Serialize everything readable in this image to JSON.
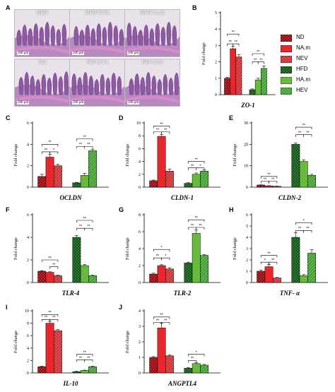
{
  "panels": {
    "A": "A",
    "B": "B",
    "C": "C",
    "D": "D",
    "E": "E",
    "F": "F",
    "G": "G",
    "H": "H",
    "I": "I",
    "J": "J"
  },
  "micrographs": [
    {
      "label": "HFD",
      "scale": "200 μm"
    },
    {
      "label": "HFD+EVs",
      "scale": "200 μm"
    },
    {
      "label": "HFD+A.m",
      "scale": "200 μm"
    },
    {
      "label": "ND",
      "scale": "200 μm"
    },
    {
      "label": "ND+EVs",
      "scale": "200 μm"
    },
    {
      "label": "ND+A.m",
      "scale": "200 μm"
    }
  ],
  "legend": [
    {
      "label": "ND",
      "color": "#c8262b",
      "pattern": "check"
    },
    {
      "label": "NA.m",
      "color": "#e8262b",
      "pattern": "solid"
    },
    {
      "label": "NEV",
      "color": "#d8262b",
      "pattern": "hatch"
    },
    {
      "label": "HFD",
      "color": "#2e7d32",
      "pattern": "check"
    },
    {
      "label": "HA.m",
      "color": "#66bb3a",
      "pattern": "solid"
    },
    {
      "label": "HEV",
      "color": "#43a047",
      "pattern": "hatch"
    }
  ],
  "colors": {
    "nd": "#c8262b",
    "na": "#e8262b",
    "nev": "#d8262b",
    "hfd": "#2e7d32",
    "ha": "#66bb3a",
    "hev": "#43a047"
  },
  "chart_data": [
    {
      "id": "B",
      "type": "bar",
      "title": "ZO-1",
      "ylabel": "Fold change",
      "ylim": [
        0,
        5
      ],
      "yticks": [
        0,
        1,
        2,
        3,
        4,
        5
      ],
      "series": [
        {
          "name": "ND",
          "values": [
            1.0
          ]
        },
        {
          "name": "NA.m",
          "values": [
            2.8
          ]
        },
        {
          "name": "NEV",
          "values": [
            2.3
          ]
        },
        {
          "name": "HFD",
          "values": [
            0.3
          ]
        },
        {
          "name": "HA.m",
          "values": [
            0.9
          ]
        },
        {
          "name": "HEV",
          "values": [
            1.6
          ]
        }
      ],
      "values": [
        1.0,
        2.8,
        2.3,
        0.3,
        0.9,
        1.6
      ],
      "errors": [
        0.05,
        0.15,
        0.15,
        0.05,
        0.1,
        0.15
      ],
      "significance": [
        {
          "from": 0,
          "to": 2,
          "label": "**",
          "level": 3.7
        },
        {
          "from": 0,
          "to": 1,
          "label": "**",
          "level": 3.1
        },
        {
          "from": 1,
          "to": 2,
          "label": "**",
          "level": 3.1
        },
        {
          "from": 3,
          "to": 5,
          "label": "**",
          "level": 2.5
        },
        {
          "from": 3,
          "to": 4,
          "label": "**",
          "level": 2.0
        },
        {
          "from": 4,
          "to": 5,
          "label": "**",
          "level": 2.0
        }
      ]
    },
    {
      "id": "C",
      "type": "bar",
      "title": "OCLDN",
      "ylabel": "Fold change",
      "ylim": [
        0,
        6
      ],
      "yticks": [
        0,
        2,
        4,
        6
      ],
      "values": [
        1.0,
        2.8,
        2.0,
        0.4,
        1.1,
        3.4
      ],
      "errors": [
        0.2,
        0.25,
        0.15,
        0.05,
        0.2,
        0.15
      ],
      "significance": [
        {
          "from": 0,
          "to": 2,
          "label": "**",
          "level": 4.0
        },
        {
          "from": 0,
          "to": 1,
          "label": "**",
          "level": 3.3
        },
        {
          "from": 1,
          "to": 2,
          "label": "*",
          "level": 3.3
        },
        {
          "from": 3,
          "to": 5,
          "label": "**",
          "level": 4.5
        },
        {
          "from": 3,
          "to": 4,
          "label": "**",
          "level": 3.8
        },
        {
          "from": 4,
          "to": 5,
          "label": "**",
          "level": 3.8
        }
      ]
    },
    {
      "id": "D",
      "type": "bar",
      "title": "CLDN-1",
      "ylabel": "Fold change",
      "ylim": [
        0,
        10
      ],
      "yticks": [
        0,
        2,
        4,
        6,
        8,
        10
      ],
      "values": [
        1.0,
        7.9,
        2.5,
        0.6,
        2.0,
        2.5
      ],
      "errors": [
        0.1,
        0.3,
        0.3,
        0.1,
        0.2,
        0.2
      ],
      "significance": [
        {
          "from": 0,
          "to": 2,
          "label": "**",
          "level": 9.5
        },
        {
          "from": 0,
          "to": 1,
          "label": "**",
          "level": 8.6
        },
        {
          "from": 1,
          "to": 2,
          "label": "**",
          "level": 8.6
        },
        {
          "from": 3,
          "to": 5,
          "label": "**",
          "level": 4.0
        },
        {
          "from": 3,
          "to": 4,
          "label": "**",
          "level": 3.0
        },
        {
          "from": 4,
          "to": 5,
          "label": "*",
          "level": 3.0
        }
      ]
    },
    {
      "id": "E",
      "type": "bar",
      "title": "CLDN-2",
      "ylabel": "Fold change",
      "ylim": [
        0,
        30
      ],
      "yticks": [
        0,
        10,
        20,
        30
      ],
      "values": [
        1.0,
        0.6,
        0.4,
        20.0,
        12.0,
        5.5
      ],
      "errors": [
        0.1,
        0.1,
        0.1,
        0.6,
        0.8,
        0.5
      ],
      "significance": [
        {
          "from": 0,
          "to": 2,
          "label": "**",
          "level": 5.0
        },
        {
          "from": 0,
          "to": 1,
          "label": "**",
          "level": 2.8
        },
        {
          "from": 1,
          "to": 2,
          "label": "**",
          "level": 2.8
        },
        {
          "from": 3,
          "to": 5,
          "label": "**",
          "level": 28.0
        },
        {
          "from": 3,
          "to": 4,
          "label": "**",
          "level": 24.5
        },
        {
          "from": 4,
          "to": 5,
          "label": "**",
          "level": 24.5
        }
      ]
    },
    {
      "id": "F",
      "type": "bar",
      "title": "TLR-4",
      "ylabel": "Fold change",
      "ylim": [
        0,
        6
      ],
      "yticks": [
        0,
        2,
        4,
        6
      ],
      "values": [
        1.0,
        0.9,
        0.6,
        4.0,
        1.5,
        0.6
      ],
      "errors": [
        0.05,
        0.05,
        0.05,
        0.15,
        0.1,
        0.05
      ],
      "significance": [
        {
          "from": 0,
          "to": 2,
          "label": "**",
          "level": 2.0
        },
        {
          "from": 1,
          "to": 2,
          "label": "**",
          "level": 1.4
        },
        {
          "from": 3,
          "to": 5,
          "label": "**",
          "level": 5.5
        },
        {
          "from": 3,
          "to": 4,
          "label": "**",
          "level": 4.8
        },
        {
          "from": 4,
          "to": 5,
          "label": "**",
          "level": 4.8
        }
      ]
    },
    {
      "id": "G",
      "type": "bar",
      "title": "TLR-2",
      "ylabel": "Fold change",
      "ylim": [
        0,
        8
      ],
      "yticks": [
        0,
        2,
        4,
        6,
        8
      ],
      "values": [
        1.0,
        2.0,
        1.6,
        2.3,
        5.8,
        3.2
      ],
      "errors": [
        0.1,
        0.1,
        0.15,
        0.1,
        0.4,
        0.1
      ],
      "significance": [
        {
          "from": 0,
          "to": 2,
          "label": "*",
          "level": 3.9
        },
        {
          "from": 0,
          "to": 1,
          "label": "**",
          "level": 2.9
        },
        {
          "from": 1,
          "to": 2,
          "label": "*",
          "level": 2.9
        },
        {
          "from": 3,
          "to": 5,
          "label": "**",
          "level": 7.4
        },
        {
          "from": 3,
          "to": 4,
          "label": "**",
          "level": 6.5
        },
        {
          "from": 4,
          "to": 5,
          "label": "**",
          "level": 6.5
        }
      ]
    },
    {
      "id": "H",
      "type": "bar",
      "title": "TNF- α",
      "ylabel": "Fold change",
      "ylim": [
        0,
        6
      ],
      "yticks": [
        0,
        1,
        2,
        3,
        4,
        5,
        6
      ],
      "values": [
        1.0,
        1.4,
        0.4,
        4.0,
        0.6,
        2.6
      ],
      "errors": [
        0.1,
        0.2,
        0.05,
        0.4,
        0.1,
        0.3
      ],
      "significance": [
        {
          "from": 0,
          "to": 2,
          "label": "**",
          "level": 2.4
        },
        {
          "from": 0,
          "to": 1,
          "label": "*",
          "level": 1.8
        },
        {
          "from": 1,
          "to": 2,
          "label": "**",
          "level": 1.8
        },
        {
          "from": 3,
          "to": 5,
          "label": "*",
          "level": 5.3
        },
        {
          "from": 3,
          "to": 4,
          "label": "**",
          "level": 4.6
        },
        {
          "from": 4,
          "to": 5,
          "label": "**",
          "level": 4.6
        }
      ]
    },
    {
      "id": "I",
      "type": "bar",
      "title": "IL-10",
      "ylabel": "Fold change",
      "ylim": [
        0,
        10
      ],
      "yticks": [
        0,
        2,
        4,
        6,
        8,
        10
      ],
      "values": [
        1.0,
        8.0,
        6.8,
        0.2,
        0.4,
        1.0
      ],
      "errors": [
        0.1,
        0.3,
        0.2,
        0.05,
        0.05,
        0.1
      ],
      "significance": [
        {
          "from": 0,
          "to": 2,
          "label": "**",
          "level": 9.4
        },
        {
          "from": 0,
          "to": 1,
          "label": "**",
          "level": 8.6
        },
        {
          "from": 1,
          "to": 2,
          "label": "**",
          "level": 8.6
        },
        {
          "from": 3,
          "to": 5,
          "label": "**",
          "level": 3.0
        },
        {
          "from": 3,
          "to": 4,
          "label": "**",
          "level": 2.1
        },
        {
          "from": 4,
          "to": 5,
          "label": "**",
          "level": 2.1
        }
      ]
    },
    {
      "id": "J",
      "type": "bar",
      "title": "ANGPTL4",
      "ylabel": "Fold change",
      "ylim": [
        0,
        4
      ],
      "yticks": [
        0,
        1,
        2,
        3,
        4
      ],
      "values": [
        1.0,
        2.9,
        1.1,
        0.3,
        0.6,
        0.5
      ],
      "errors": [
        0.05,
        0.3,
        0.05,
        0.05,
        0.05,
        0.05
      ],
      "significance": [
        {
          "from": 0,
          "to": 2,
          "label": "**",
          "level": 3.6
        },
        {
          "from": 0,
          "to": 1,
          "label": "**",
          "level": 3.25
        },
        {
          "from": 1,
          "to": 2,
          "label": "**",
          "level": 3.25
        },
        {
          "from": 3,
          "to": 5,
          "label": "*",
          "level": 1.2
        },
        {
          "from": 3,
          "to": 4,
          "label": "**",
          "level": 0.8
        }
      ]
    }
  ]
}
